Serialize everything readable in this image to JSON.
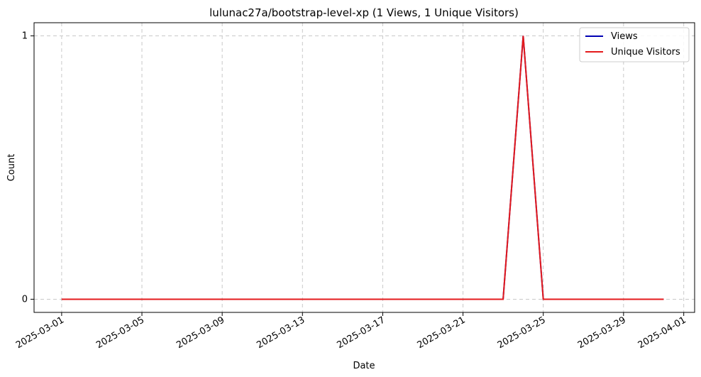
{
  "chart_data": {
    "type": "line",
    "title": "lulunac27a/bootstrap-level-xp (1 Views, 1 Unique Visitors)",
    "xlabel": "Date",
    "ylabel": "Count",
    "x_range": [
      "2025-02-27T15:00",
      "2025-04-01T13:00"
    ],
    "ylim": [
      -0.05,
      1.05
    ],
    "x_ticks": [
      "2025-03-01",
      "2025-03-05",
      "2025-03-09",
      "2025-03-13",
      "2025-03-17",
      "2025-03-21",
      "2025-03-25",
      "2025-03-29",
      "2025-04-01"
    ],
    "y_ticks": [
      0,
      1
    ],
    "y_tick_labels": [
      "0",
      "1"
    ],
    "grid": true,
    "legend_position": "top-right",
    "series": [
      {
        "name": "Views",
        "color": "#0000b4",
        "x": [
          "2025-03-01",
          "2025-03-23",
          "2025-03-24",
          "2025-03-25",
          "2025-03-31"
        ],
        "values": [
          0,
          0,
          1,
          0,
          0
        ]
      },
      {
        "name": "Unique Visitors",
        "color": "#e41a1c",
        "x": [
          "2025-03-01",
          "2025-03-23",
          "2025-03-24",
          "2025-03-25",
          "2025-03-31"
        ],
        "values": [
          0,
          0,
          1,
          0,
          0
        ]
      }
    ]
  }
}
